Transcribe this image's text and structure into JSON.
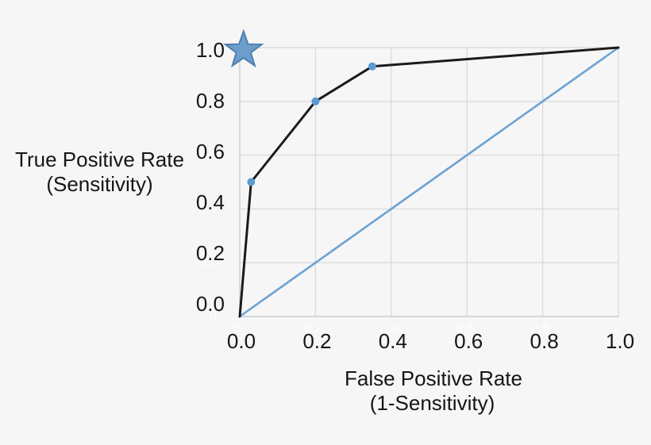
{
  "figure": {
    "background_color": "#f6f6f6"
  },
  "chart_data": {
    "type": "line",
    "title": "",
    "xlabel": "False Positive Rate (1-Sensitivity)",
    "ylabel": "True Positive Rate (Sensitivity)",
    "xlabel_lines": [
      "False Positive Rate",
      "(1-Sensitivity)"
    ],
    "ylabel_lines": [
      "True Positive Rate",
      "(Sensitivity)"
    ],
    "xlim": [
      0,
      1
    ],
    "ylim": [
      0,
      1
    ],
    "grid": true,
    "legend": "none",
    "x_ticks": [
      0,
      0.2,
      0.4,
      0.6,
      0.8,
      1
    ],
    "y_ticks": [
      0,
      0.2,
      0.4,
      0.6,
      0.8,
      1
    ],
    "x_tick_labels": [
      "0.0",
      "0.2",
      "0.4",
      "0.6",
      "0.8",
      "1.0"
    ],
    "y_tick_labels": [
      "0.0",
      "0.2",
      "0.4",
      "0.6",
      "0.8",
      "1.0"
    ],
    "ghost_x_ticks": [
      0,
      0.2,
      0.4,
      0.6,
      0.8,
      1
    ],
    "ghost_x_tick_labels": [
      "0",
      "0.2",
      "0.4",
      "0.6",
      "0.8",
      "1"
    ],
    "ghost_y_ticks": [
      0.6,
      0.4,
      0.2,
      0
    ],
    "ghost_y_tick_labels": [
      "0.6",
      "0.4",
      "0.2",
      "0"
    ],
    "series": [
      {
        "name": "chance-diagonal-line",
        "color": "#6ca2d4",
        "stroke_width": 2.6,
        "points": [
          [
            0,
            0
          ],
          [
            1,
            1
          ]
        ],
        "marker_points": [],
        "marker_color": ""
      },
      {
        "name": "roc-curve-line",
        "color": "#1b1b1b",
        "stroke_width": 3,
        "points": [
          [
            0,
            0
          ],
          [
            0.03,
            0.5
          ],
          [
            0.2,
            0.8
          ],
          [
            0.35,
            0.93
          ],
          [
            1,
            1
          ]
        ],
        "marker_points": [
          [
            0.03,
            0.5
          ],
          [
            0.2,
            0.8
          ],
          [
            0.35,
            0.93
          ]
        ],
        "marker_color": "#5b9bd5"
      }
    ],
    "annotations": [
      {
        "name": "perfect-classifier-star",
        "type": "star",
        "x": 0.01,
        "y": 0.99,
        "fill": "#6d9dca",
        "stroke": "#4d80b2"
      }
    ],
    "colors": {
      "grid": "#dcdcdc",
      "axis": "#cccccc",
      "tick_text": "#161616",
      "ghost_text": "#ffffff"
    }
  }
}
